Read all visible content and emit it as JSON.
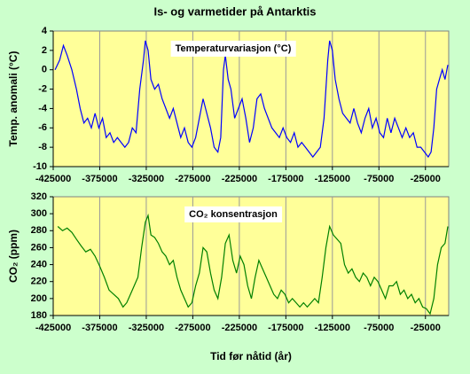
{
  "title": "Is- og varmetider på Antarktis",
  "chart_data": [
    {
      "type": "line",
      "annotation": "Temperaturvariasjon (°C)",
      "ylabel": "Temp. anomali (°C)",
      "color": "#0000ff",
      "xlim": [
        -425000,
        0
      ],
      "xticks": [
        -425000,
        -375000,
        -325000,
        -275000,
        -225000,
        -175000,
        -125000,
        -75000,
        -25000
      ],
      "ylim": [
        -10,
        4
      ],
      "yticks": [
        -10,
        -8,
        -6,
        -4,
        -2,
        0,
        2,
        4
      ],
      "grid": "x",
      "x": [
        -423000,
        -418000,
        -414000,
        -410000,
        -405000,
        -400000,
        -396000,
        -392000,
        -388000,
        -384000,
        -380000,
        -376000,
        -372000,
        -368000,
        -364000,
        -360000,
        -356000,
        -352000,
        -348000,
        -344000,
        -340000,
        -336000,
        -332000,
        -328000,
        -326000,
        -323000,
        -320000,
        -316000,
        -312000,
        -308000,
        -304000,
        -300000,
        -296000,
        -292000,
        -288000,
        -284000,
        -280000,
        -276000,
        -272000,
        -268000,
        -264000,
        -260000,
        -256000,
        -252000,
        -248000,
        -245000,
        -242000,
        -240000,
        -237000,
        -234000,
        -230000,
        -226000,
        -222000,
        -218000,
        -214000,
        -210000,
        -206000,
        -202000,
        -198000,
        -194000,
        -190000,
        -186000,
        -182000,
        -178000,
        -174000,
        -170000,
        -166000,
        -162000,
        -158000,
        -154000,
        -150000,
        -146000,
        -142000,
        -138000,
        -134000,
        -130000,
        -128000,
        -125000,
        -122000,
        -118000,
        -114000,
        -110000,
        -106000,
        -102000,
        -98000,
        -94000,
        -90000,
        -86000,
        -82000,
        -78000,
        -74000,
        -70000,
        -66000,
        -62000,
        -58000,
        -54000,
        -50000,
        -46000,
        -42000,
        -38000,
        -34000,
        -30000,
        -26000,
        -22000,
        -19000,
        -16000,
        -13000,
        -10000,
        -7000,
        -4000,
        -1000
      ],
      "values": [
        0,
        1,
        2.5,
        1.5,
        0,
        -2,
        -4,
        -5.5,
        -5,
        -6,
        -4.5,
        -6,
        -5,
        -7,
        -6.5,
        -7.5,
        -7,
        -7.5,
        -8,
        -7.5,
        -6,
        -6.5,
        -2,
        1,
        3,
        2,
        -1,
        -2,
        -1.5,
        -3,
        -4,
        -5,
        -4,
        -5.5,
        -7,
        -6,
        -7.5,
        -8,
        -7,
        -5,
        -3,
        -4.5,
        -6,
        -8,
        -8.5,
        -7,
        0,
        1.5,
        -1,
        -2,
        -5,
        -4,
        -3,
        -5,
        -7.5,
        -6,
        -3,
        -2.5,
        -4,
        -5,
        -6,
        -6.5,
        -7,
        -6,
        -7,
        -7.5,
        -6.5,
        -8,
        -7.5,
        -8,
        -8.5,
        -9,
        -8.5,
        -8,
        -5,
        1,
        3,
        2,
        -1,
        -3,
        -4.5,
        -5,
        -5.5,
        -4,
        -5.5,
        -6.5,
        -5,
        -4,
        -6,
        -5,
        -6.5,
        -7,
        -5,
        -6.5,
        -5,
        -6,
        -7,
        -6,
        -7,
        -6.5,
        -8,
        -8,
        -8.5,
        -9,
        -8.5,
        -6,
        -2,
        -1,
        0,
        -1,
        0.5
      ]
    },
    {
      "type": "line",
      "annotation": "CO₂ konsentrasjon",
      "ylabel": "CO₂ (ppm)",
      "xlabel": "Tid før nåtid (år)",
      "color": "#008000",
      "xlim": [
        -425000,
        0
      ],
      "xticks": [
        -425000,
        -375000,
        -325000,
        -275000,
        -225000,
        -175000,
        -125000,
        -75000,
        -25000
      ],
      "ylim": [
        180,
        320
      ],
      "yticks": [
        180,
        200,
        220,
        240,
        260,
        280,
        300,
        320
      ],
      "grid": "x",
      "x": [
        -420000,
        -415000,
        -410000,
        -405000,
        -400000,
        -395000,
        -390000,
        -385000,
        -380000,
        -375000,
        -370000,
        -365000,
        -360000,
        -355000,
        -350000,
        -346000,
        -342000,
        -338000,
        -334000,
        -330000,
        -326000,
        -323000,
        -320000,
        -316000,
        -312000,
        -308000,
        -304000,
        -300000,
        -296000,
        -292000,
        -288000,
        -284000,
        -280000,
        -276000,
        -272000,
        -268000,
        -264000,
        -260000,
        -256000,
        -252000,
        -248000,
        -244000,
        -240000,
        -236000,
        -232000,
        -228000,
        -224000,
        -220000,
        -216000,
        -212000,
        -208000,
        -204000,
        -200000,
        -196000,
        -192000,
        -188000,
        -184000,
        -180000,
        -176000,
        -172000,
        -168000,
        -164000,
        -160000,
        -156000,
        -152000,
        -148000,
        -144000,
        -140000,
        -136000,
        -132000,
        -128000,
        -124000,
        -120000,
        -116000,
        -112000,
        -108000,
        -104000,
        -100000,
        -96000,
        -92000,
        -88000,
        -84000,
        -80000,
        -76000,
        -72000,
        -68000,
        -64000,
        -60000,
        -56000,
        -52000,
        -48000,
        -44000,
        -40000,
        -36000,
        -32000,
        -28000,
        -24000,
        -20000,
        -16000,
        -12000,
        -8000,
        -4000,
        -1000
      ],
      "values": [
        285,
        280,
        283,
        278,
        270,
        262,
        255,
        258,
        250,
        238,
        225,
        210,
        205,
        200,
        190,
        195,
        205,
        215,
        225,
        260,
        290,
        298,
        275,
        272,
        265,
        255,
        250,
        240,
        245,
        225,
        210,
        200,
        190,
        195,
        215,
        230,
        260,
        255,
        230,
        210,
        200,
        225,
        265,
        275,
        245,
        230,
        250,
        240,
        215,
        200,
        225,
        245,
        235,
        225,
        215,
        205,
        200,
        210,
        205,
        195,
        200,
        195,
        190,
        195,
        190,
        195,
        200,
        195,
        225,
        260,
        285,
        275,
        270,
        265,
        240,
        230,
        235,
        225,
        220,
        230,
        225,
        215,
        225,
        220,
        210,
        200,
        215,
        215,
        220,
        205,
        210,
        200,
        205,
        195,
        200,
        190,
        188,
        182,
        200,
        240,
        260,
        265,
        285
      ]
    }
  ]
}
